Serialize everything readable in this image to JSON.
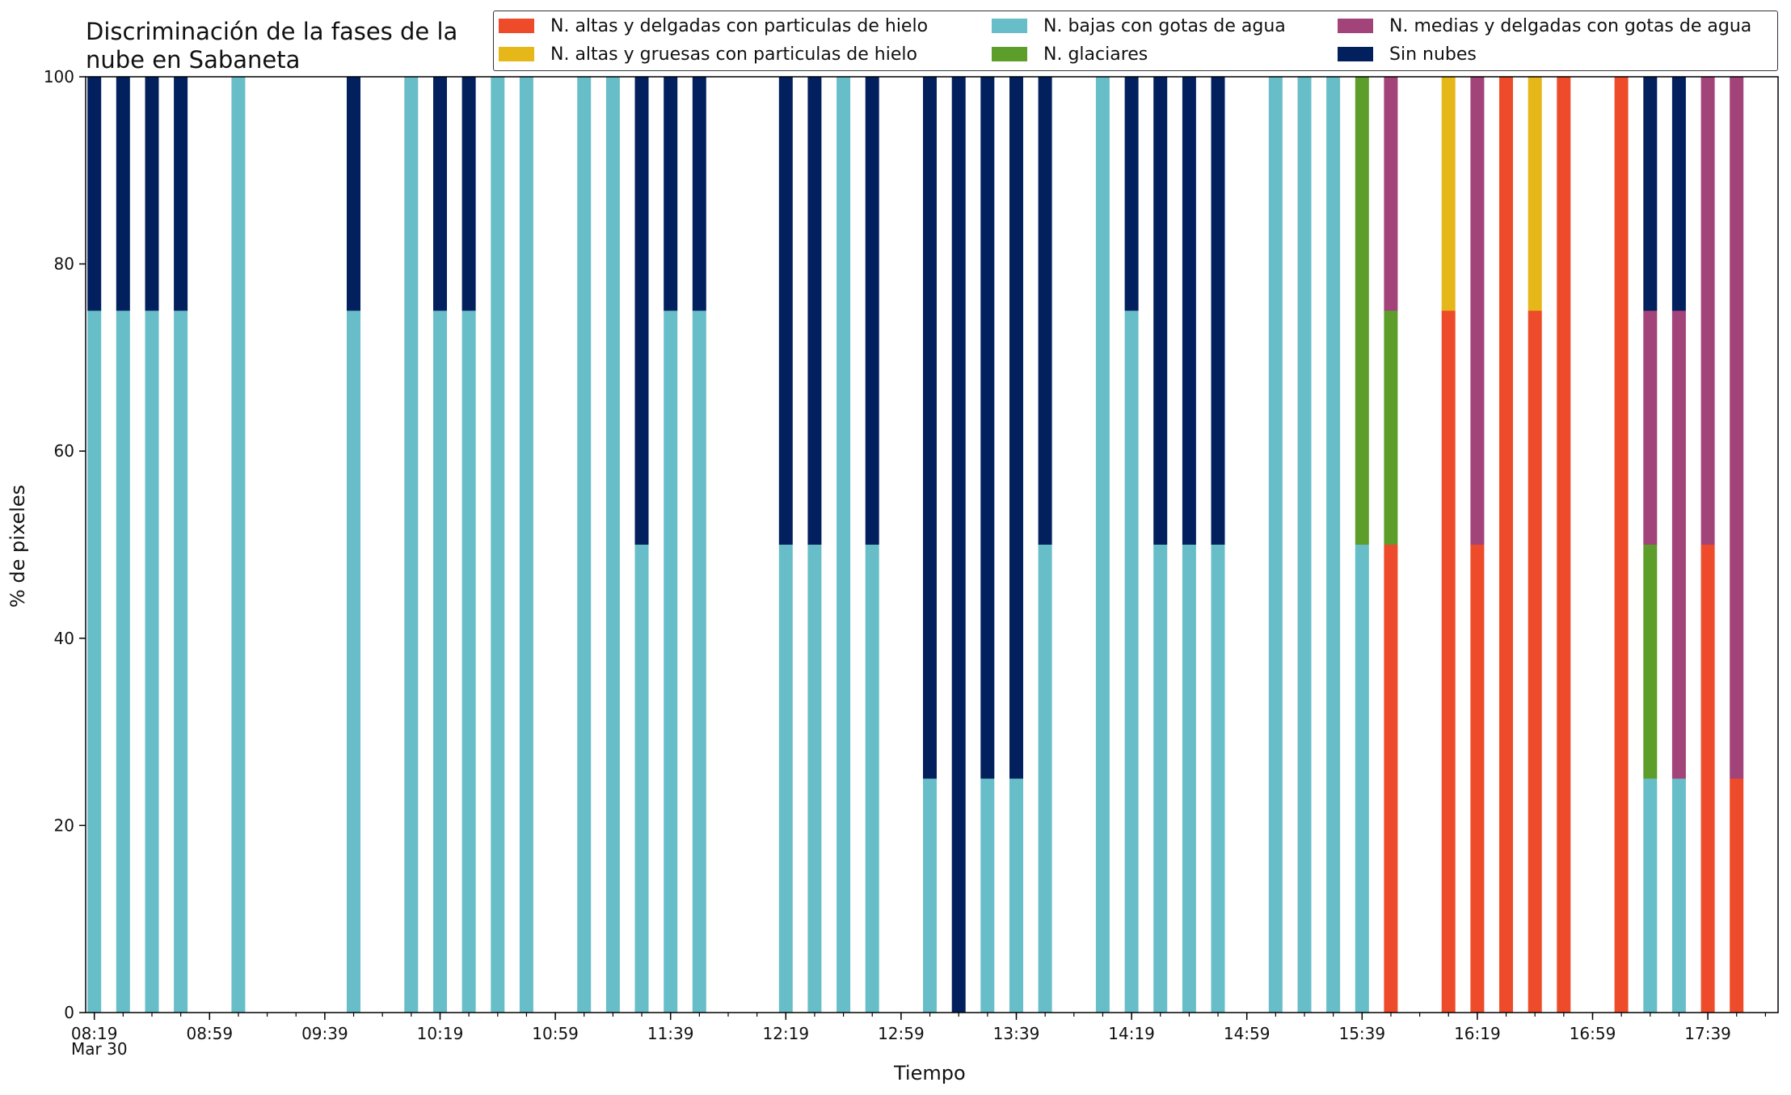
{
  "chart_data": {
    "type": "bar",
    "stacked": true,
    "title": "Discriminación de la fases de la nube en Sabaneta",
    "title_lines": [
      "Discriminación de la fases de la",
      "nube en Sabaneta"
    ],
    "xlabel": "Tiempo",
    "ylabel": "% de pixeles",
    "ylim": [
      0,
      100
    ],
    "yticks": [
      0,
      20,
      40,
      60,
      80,
      100
    ],
    "x_date_label": "Mar 30",
    "xticks": [
      "08:19",
      "08:59",
      "09:39",
      "10:19",
      "10:59",
      "11:39",
      "12:19",
      "12:59",
      "13:39",
      "14:19",
      "14:59",
      "15:39",
      "16:19",
      "16:59",
      "17:39"
    ],
    "x_start": "08:19",
    "x_end": "17:59",
    "x_step_minutes": 10,
    "legend_position": "top-right",
    "series": [
      {
        "name": "N. altas y delgadas con particulas de hielo",
        "color": "#EE4B2B"
      },
      {
        "name": "N. altas y gruesas con particulas de hielo",
        "color": "#E6B719"
      },
      {
        "name": "N. bajas con gotas de agua",
        "color": "#68BEC8"
      },
      {
        "name": "N. glaciares",
        "color": "#5D9E2B"
      },
      {
        "name": "N. medias y delgadas con gotas de agua",
        "color": "#A2437A"
      },
      {
        "name": "Sin nubes",
        "color": "#03205E"
      }
    ],
    "legend_order": [
      0,
      2,
      4,
      1,
      3,
      5
    ],
    "stack_order": [
      0,
      1,
      2,
      3,
      4,
      5
    ],
    "bars": [
      {
        "t": "08:19",
        "values": [
          0,
          0,
          75,
          0,
          0,
          25
        ]
      },
      {
        "t": "08:29",
        "values": [
          0,
          0,
          75,
          0,
          0,
          25
        ]
      },
      {
        "t": "08:39",
        "values": [
          0,
          0,
          75,
          0,
          0,
          25
        ]
      },
      {
        "t": "08:49",
        "values": [
          0,
          0,
          75,
          0,
          0,
          25
        ]
      },
      {
        "t": "09:09",
        "values": [
          0,
          0,
          100,
          0,
          0,
          0
        ]
      },
      {
        "t": "09:49",
        "values": [
          0,
          0,
          75,
          0,
          0,
          25
        ]
      },
      {
        "t": "10:09",
        "values": [
          0,
          0,
          100,
          0,
          0,
          0
        ]
      },
      {
        "t": "10:19",
        "values": [
          0,
          0,
          75,
          0,
          0,
          25
        ]
      },
      {
        "t": "10:29",
        "values": [
          0,
          0,
          75,
          0,
          0,
          25
        ]
      },
      {
        "t": "10:39",
        "values": [
          0,
          0,
          100,
          0,
          0,
          0
        ]
      },
      {
        "t": "10:49",
        "values": [
          0,
          0,
          100,
          0,
          0,
          0
        ]
      },
      {
        "t": "11:09",
        "values": [
          0,
          0,
          100,
          0,
          0,
          0
        ]
      },
      {
        "t": "11:19",
        "values": [
          0,
          0,
          100,
          0,
          0,
          0
        ]
      },
      {
        "t": "11:29",
        "values": [
          0,
          0,
          50,
          0,
          0,
          50
        ]
      },
      {
        "t": "11:39",
        "values": [
          0,
          0,
          75,
          0,
          0,
          25
        ]
      },
      {
        "t": "11:49",
        "values": [
          0,
          0,
          75,
          0,
          0,
          25
        ]
      },
      {
        "t": "12:19",
        "values": [
          0,
          0,
          50,
          0,
          0,
          50
        ]
      },
      {
        "t": "12:29",
        "values": [
          0,
          0,
          50,
          0,
          0,
          50
        ]
      },
      {
        "t": "12:39",
        "values": [
          0,
          0,
          100,
          0,
          0,
          0
        ]
      },
      {
        "t": "12:49",
        "values": [
          0,
          0,
          50,
          0,
          0,
          50
        ]
      },
      {
        "t": "13:09",
        "values": [
          0,
          0,
          25,
          0,
          0,
          75
        ]
      },
      {
        "t": "13:19",
        "values": [
          0,
          0,
          0,
          0,
          0,
          100
        ]
      },
      {
        "t": "13:29",
        "values": [
          0,
          0,
          25,
          0,
          0,
          75
        ]
      },
      {
        "t": "13:39",
        "values": [
          0,
          0,
          25,
          0,
          0,
          75
        ]
      },
      {
        "t": "13:49",
        "values": [
          0,
          0,
          50,
          0,
          0,
          50
        ]
      },
      {
        "t": "14:09",
        "values": [
          0,
          0,
          100,
          0,
          0,
          0
        ]
      },
      {
        "t": "14:19",
        "values": [
          0,
          0,
          75,
          0,
          0,
          25
        ]
      },
      {
        "t": "14:29",
        "values": [
          0,
          0,
          50,
          0,
          0,
          50
        ]
      },
      {
        "t": "14:39",
        "values": [
          0,
          0,
          50,
          0,
          0,
          50
        ]
      },
      {
        "t": "14:49",
        "values": [
          0,
          0,
          50,
          0,
          0,
          50
        ]
      },
      {
        "t": "15:09",
        "values": [
          0,
          0,
          100,
          0,
          0,
          0
        ]
      },
      {
        "t": "15:19",
        "values": [
          0,
          0,
          100,
          0,
          0,
          0
        ]
      },
      {
        "t": "15:29",
        "values": [
          0,
          0,
          100,
          0,
          0,
          0
        ]
      },
      {
        "t": "15:39",
        "values": [
          0,
          0,
          50,
          50,
          0,
          0
        ]
      },
      {
        "t": "15:49",
        "values": [
          50,
          0,
          0,
          25,
          25,
          0
        ]
      },
      {
        "t": "16:09",
        "values": [
          75,
          25,
          0,
          0,
          0,
          0
        ]
      },
      {
        "t": "16:19",
        "values": [
          50,
          0,
          0,
          0,
          50,
          0
        ]
      },
      {
        "t": "16:29",
        "values": [
          100,
          0,
          0,
          0,
          0,
          0
        ]
      },
      {
        "t": "16:39",
        "values": [
          75,
          25,
          0,
          0,
          0,
          0
        ]
      },
      {
        "t": "16:49",
        "values": [
          100,
          0,
          0,
          0,
          0,
          0
        ]
      },
      {
        "t": "17:09",
        "values": [
          100,
          0,
          0,
          0,
          0,
          0
        ]
      },
      {
        "t": "17:19",
        "values": [
          0,
          0,
          25,
          25,
          25,
          25
        ]
      },
      {
        "t": "17:29",
        "values": [
          0,
          0,
          25,
          0,
          50,
          25
        ]
      },
      {
        "t": "17:39",
        "values": [
          50,
          0,
          0,
          0,
          50,
          0
        ]
      },
      {
        "t": "17:49",
        "values": [
          25,
          0,
          0,
          0,
          75,
          0
        ]
      }
    ]
  }
}
